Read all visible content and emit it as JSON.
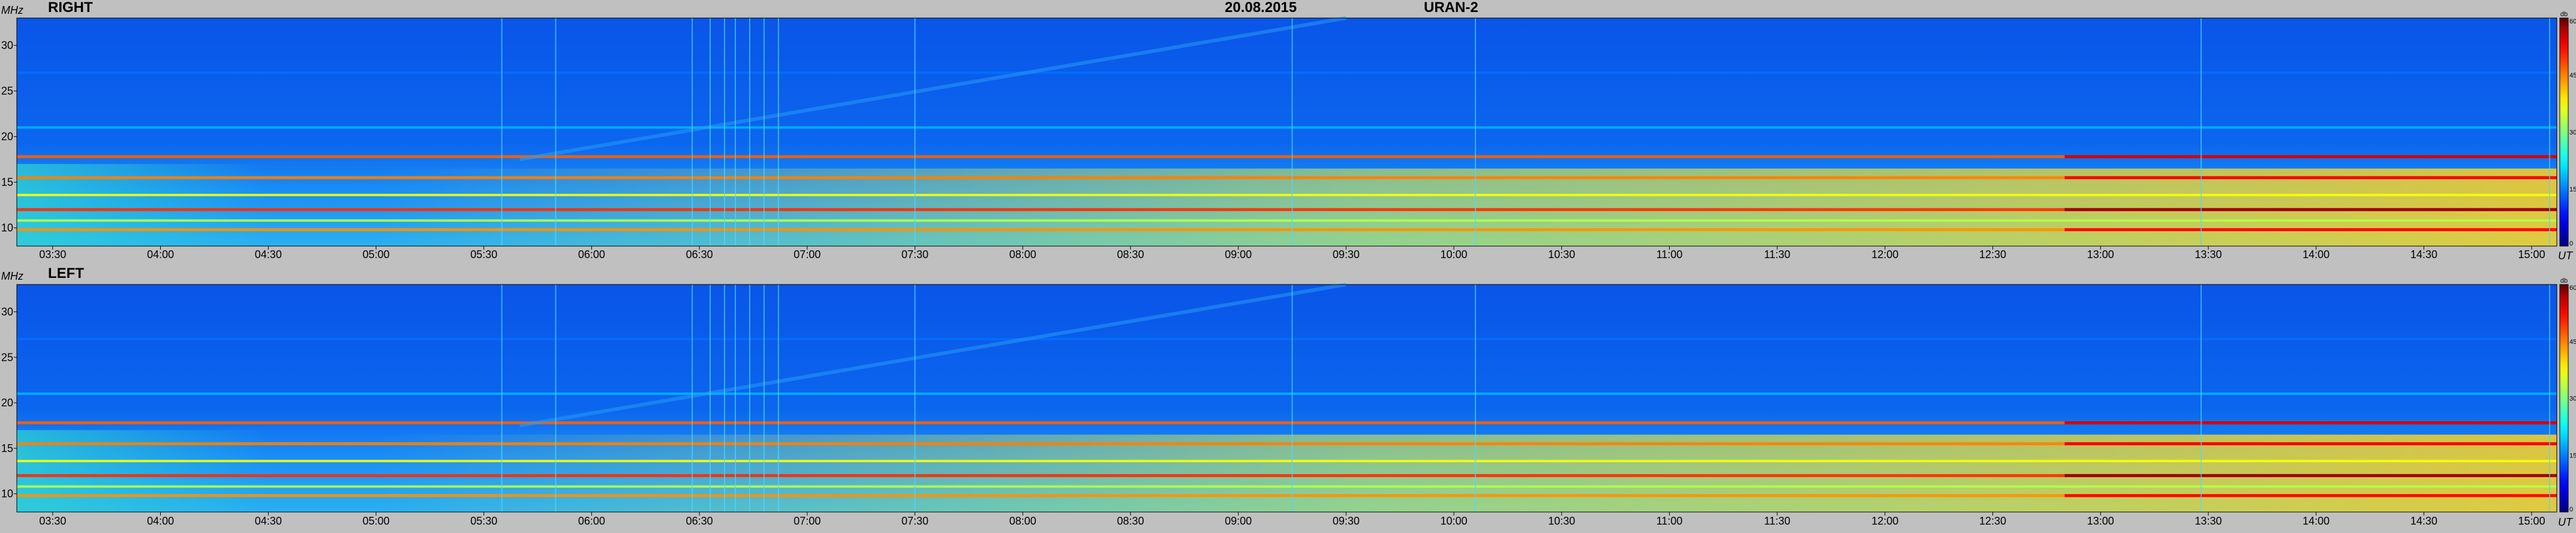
{
  "header": {
    "date": "20.08.2015",
    "instrument": "URAN-2"
  },
  "chart_data": [
    {
      "type": "heatmap",
      "panel": "RIGHT",
      "title": "RIGHT",
      "ylabel": "MHz",
      "xlabel": "UT",
      "y_ticks": [
        10,
        15,
        20,
        25,
        30
      ],
      "ylim": [
        8,
        33
      ],
      "xlim": [
        "03:20",
        "15:07"
      ],
      "x_ticks": [
        "03:30",
        "04:00",
        "04:30",
        "05:00",
        "05:30",
        "06:00",
        "06:30",
        "07:00",
        "07:30",
        "08:00",
        "08:30",
        "09:00",
        "09:30",
        "10:00",
        "10:30",
        "11:00",
        "11:30",
        "12:00",
        "12:30",
        "13:00",
        "13:30",
        "14:00",
        "14:30",
        "15:00"
      ],
      "colorbar": {
        "label": "db",
        "ticks": [
          0,
          15,
          30,
          45,
          60
        ],
        "range": [
          0,
          60
        ],
        "colormap": "jet"
      },
      "bands_mhz": [
        {
          "freq": 9.8,
          "level": 44
        },
        {
          "freq": 10.8,
          "level": 33
        },
        {
          "freq": 12.0,
          "level": 50
        },
        {
          "freq": 13.6,
          "level": 37
        },
        {
          "freq": 15.5,
          "level": 45
        },
        {
          "freq": 17.8,
          "level": 47
        },
        {
          "freq": 21.0,
          "level": 18
        },
        {
          "freq": 27.0,
          "level": 14
        }
      ]
    },
    {
      "type": "heatmap",
      "panel": "LEFT",
      "title": "LEFT",
      "ylabel": "MHz",
      "xlabel": "UT",
      "y_ticks": [
        10,
        15,
        20,
        25,
        30
      ],
      "ylim": [
        8,
        33
      ],
      "xlim": [
        "03:20",
        "15:07"
      ],
      "x_ticks": [
        "03:30",
        "04:00",
        "04:30",
        "05:00",
        "05:30",
        "06:00",
        "06:30",
        "07:00",
        "07:30",
        "08:00",
        "08:30",
        "09:00",
        "09:30",
        "10:00",
        "10:30",
        "11:00",
        "11:30",
        "12:00",
        "12:30",
        "13:00",
        "13:30",
        "14:00",
        "14:30",
        "15:00"
      ],
      "colorbar": {
        "label": "db",
        "ticks": [
          0,
          15,
          30,
          45,
          60
        ],
        "range": [
          0,
          60
        ],
        "colormap": "jet"
      },
      "bands_mhz": [
        {
          "freq": 9.8,
          "level": 44
        },
        {
          "freq": 10.8,
          "level": 33
        },
        {
          "freq": 12.0,
          "level": 50
        },
        {
          "freq": 13.6,
          "level": 37
        },
        {
          "freq": 15.5,
          "level": 45
        },
        {
          "freq": 17.8,
          "level": 47
        },
        {
          "freq": 21.0,
          "level": 18
        },
        {
          "freq": 27.0,
          "level": 14
        }
      ]
    }
  ]
}
